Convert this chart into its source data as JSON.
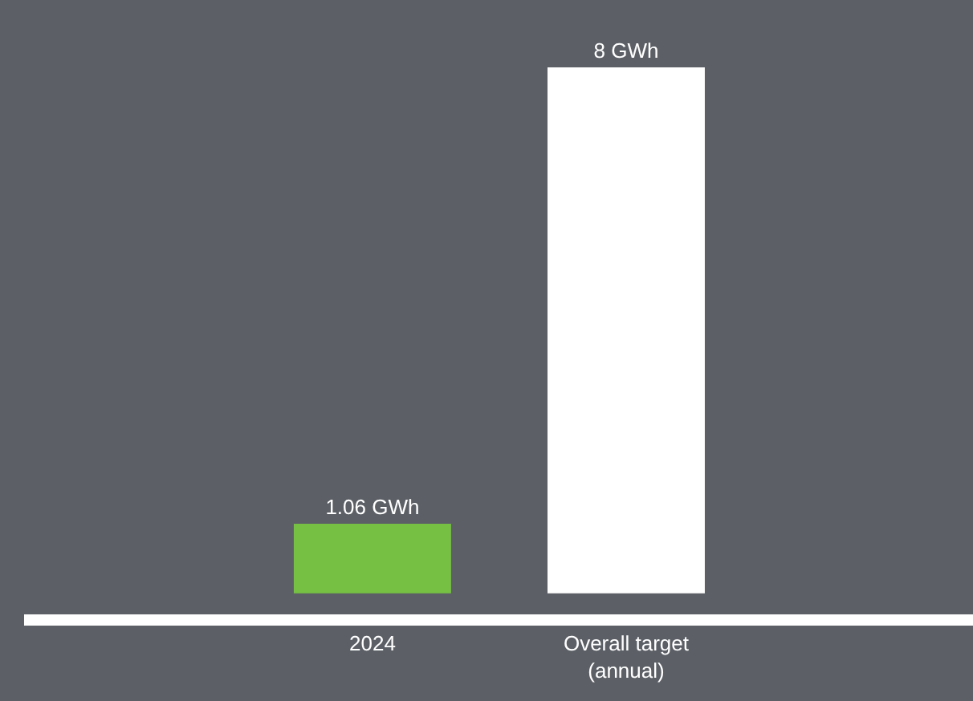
{
  "chart_data": {
    "type": "bar",
    "categories": [
      "2024",
      "Overall target\n(annual)"
    ],
    "values": [
      1.06,
      8
    ],
    "colors": [
      "#76c043",
      "#ffffff"
    ],
    "value_labels": [
      "1.06 GWh",
      "8 GWh"
    ],
    "grid": false,
    "legend": false
  }
}
